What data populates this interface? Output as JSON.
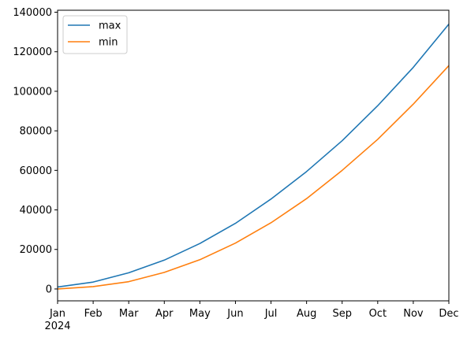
{
  "chart_data": {
    "type": "line",
    "x": [
      "Jan",
      "Feb",
      "Mar",
      "Apr",
      "May",
      "Jun",
      "Jul",
      "Aug",
      "Sep",
      "Oct",
      "Nov",
      "Dec"
    ],
    "x_year_label": "2024",
    "series": [
      {
        "name": "max",
        "color": "#1f77b4",
        "values": [
          1000,
          3500,
          8200,
          14600,
          23000,
          33200,
          45500,
          59400,
          75000,
          92700,
          112100,
          134000
        ]
      },
      {
        "name": "min",
        "color": "#ff7f0e",
        "values": [
          0,
          1200,
          3700,
          8400,
          14800,
          23200,
          33500,
          45700,
          60000,
          75700,
          93500,
          113000
        ]
      }
    ],
    "yticks": [
      "0",
      "20000",
      "40000",
      "60000",
      "80000",
      "100000",
      "120000",
      "140000"
    ],
    "ytick_values": [
      0,
      20000,
      40000,
      60000,
      80000,
      100000,
      120000,
      140000
    ],
    "ylim": [
      -6000,
      141000
    ],
    "legend_position": "upper-left",
    "grid": false,
    "title": "",
    "xlabel": "",
    "ylabel": ""
  }
}
